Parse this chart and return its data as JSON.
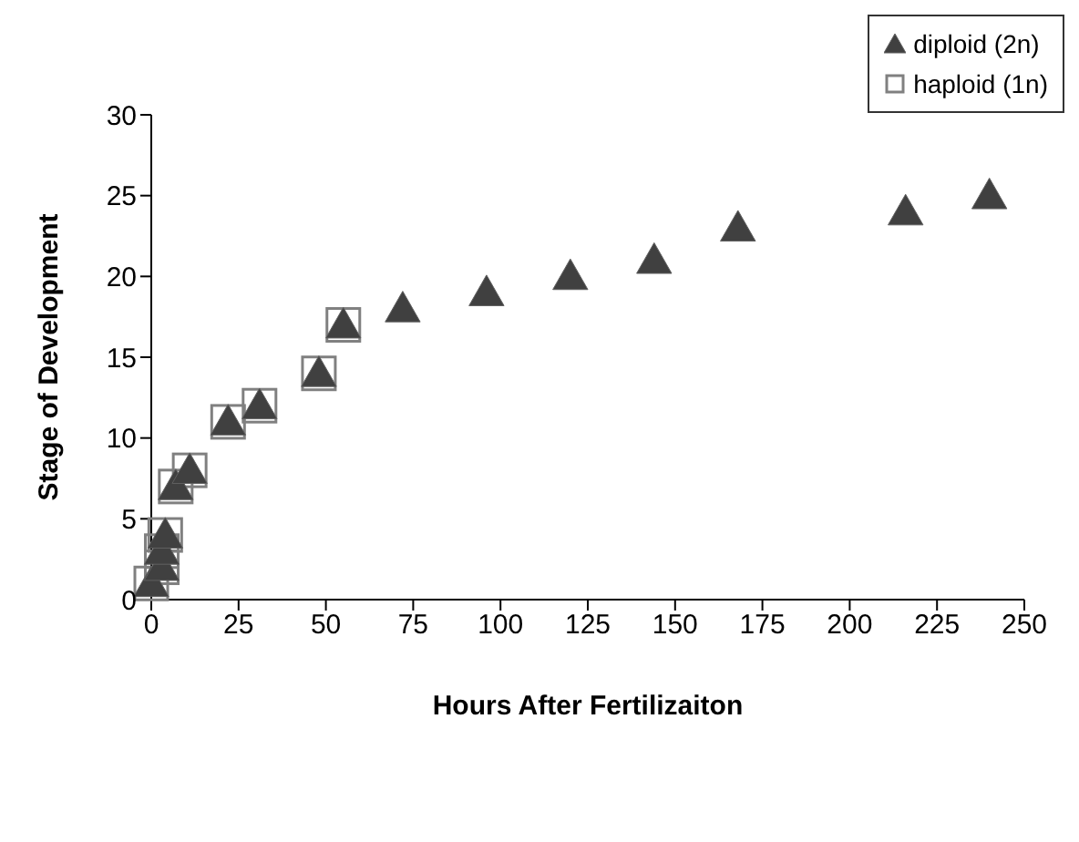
{
  "chart_data": {
    "type": "scatter",
    "xlabel": "Hours After Fertilizaiton",
    "ylabel": "Stage of Development",
    "xlim": [
      0,
      250
    ],
    "xticks": [
      0,
      25,
      50,
      75,
      100,
      125,
      150,
      175,
      200,
      225,
      250
    ],
    "ylim": [
      0,
      30
    ],
    "yticks": [
      0,
      5,
      10,
      15,
      20,
      25,
      30
    ],
    "grid": false,
    "legend": "top right",
    "series": [
      {
        "name": "diploid (2n)",
        "color": "#404040",
        "marker": "triangle",
        "x": [
          0,
          3,
          3,
          4,
          7,
          11,
          22,
          31,
          48,
          55,
          72,
          96,
          120,
          144,
          168,
          216,
          240
        ],
        "values": [
          1,
          2,
          3,
          4,
          7,
          8,
          11,
          12,
          14,
          17,
          18,
          19,
          20,
          21,
          23,
          24,
          25
        ]
      },
      {
        "name": "haploid (1n)",
        "color": "#808080",
        "marker": "square",
        "x": [
          0,
          3,
          3,
          4,
          7,
          11,
          22,
          31,
          48,
          55
        ],
        "values": [
          1,
          2,
          3,
          4,
          7,
          8,
          11,
          12,
          14,
          17
        ]
      }
    ]
  }
}
